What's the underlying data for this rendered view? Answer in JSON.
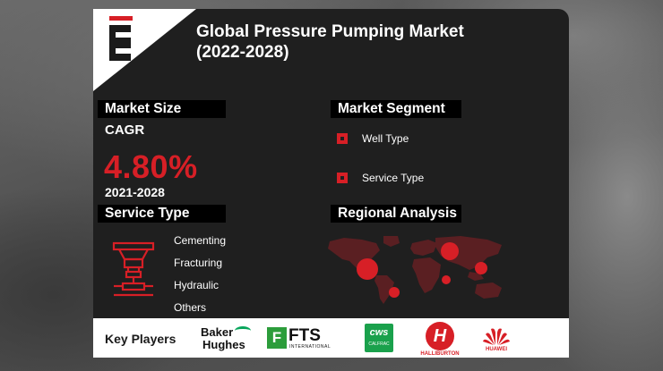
{
  "header": {
    "title_line1": "Global Pressure Pumping Market",
    "title_line2": "(2022-2028)"
  },
  "market_size": {
    "heading": "Market Size",
    "cagr_label": "CAGR",
    "cagr_value": "4.80%",
    "period": "2021-2028"
  },
  "market_segment": {
    "heading": "Market Segment",
    "items": [
      "Well Type",
      "Service Type"
    ]
  },
  "service_type": {
    "heading": "Service Type",
    "items": [
      "Cementing",
      "Fracturing",
      "Hydraulic",
      "Others"
    ]
  },
  "regional": {
    "heading": "Regional Analysis"
  },
  "key_players": {
    "label": "Key Players",
    "baker_line1": "Baker",
    "baker_line2": "Hughes",
    "fts_mark": "F",
    "fts_name": "FTS",
    "fts_sub": "INTERNATIONAL",
    "cws_mark": "cws",
    "cws_sub": "CALFRAC",
    "halliburton_mark": "H",
    "halliburton_name": "HALLIBURTON",
    "huawei_name": "HUAWEI"
  },
  "colors": {
    "accent": "#d71f26",
    "panel": "#1f1f1f",
    "fts_green": "#2c9d3b",
    "calfrac_green": "#1aa14c",
    "baker_green": "#07a55b"
  }
}
